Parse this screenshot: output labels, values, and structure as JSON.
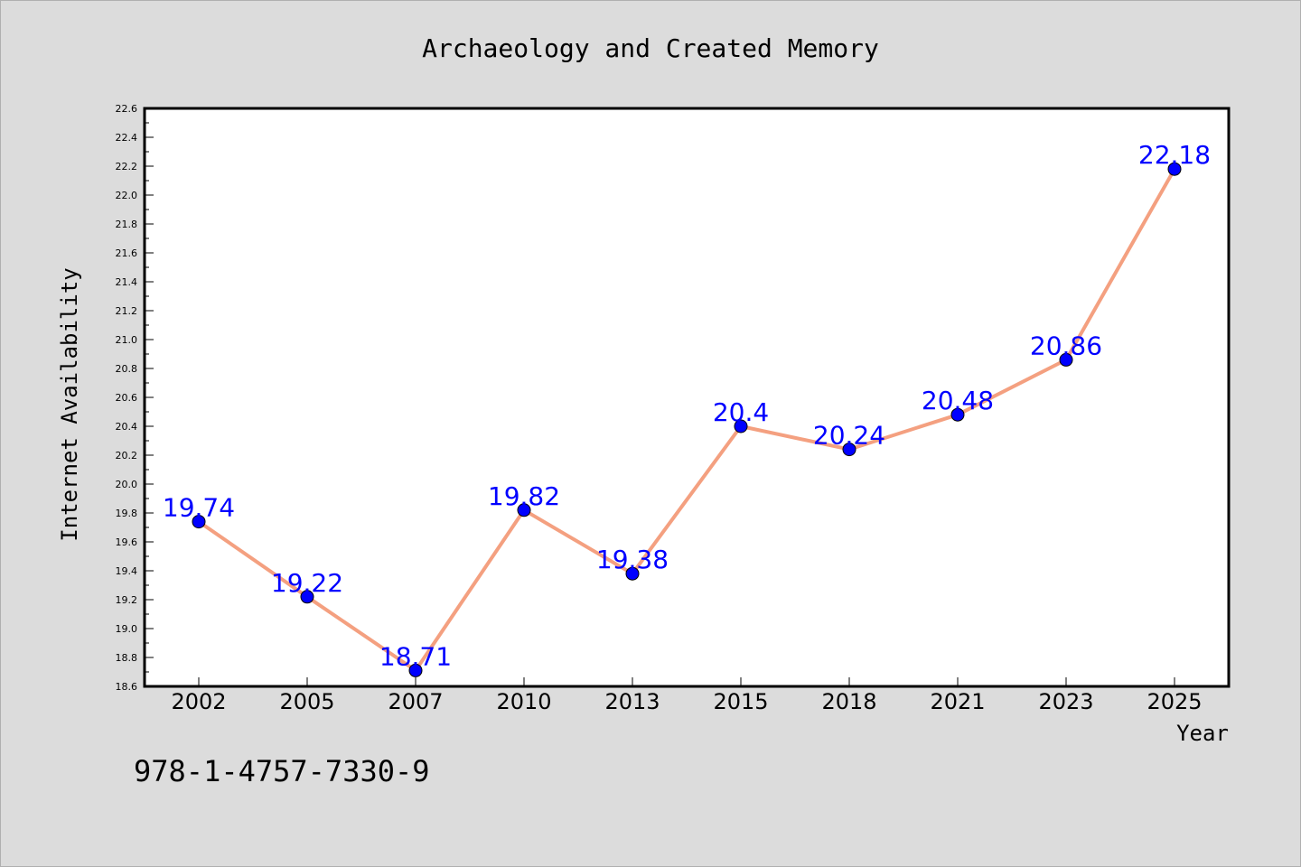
{
  "footer_code": "978-1-4757-7330-9",
  "colors": {
    "background": "#dcdcdc",
    "plot_background": "#ffffff",
    "line": "#f4a080",
    "marker": "#0000ff",
    "data_label": "#0000ff"
  },
  "chart_data": {
    "type": "line",
    "title": "Archaeology and Created Memory",
    "xlabel": "Year",
    "ylabel": "Internet Availability",
    "categories": [
      "2002",
      "2005",
      "2007",
      "2010",
      "2013",
      "2015",
      "2018",
      "2021",
      "2023",
      "2025"
    ],
    "series": [
      {
        "values": [
          19.74,
          19.22,
          18.71,
          19.82,
          19.38,
          20.4,
          20.24,
          20.48,
          20.86,
          22.18
        ],
        "data_labels": [
          "19.74",
          "19.22",
          "18.71",
          "19.82",
          "19.38",
          "20.4",
          "20.24",
          "20.48",
          "20.86",
          "22.18"
        ]
      }
    ],
    "ylim": [
      18.6,
      22.6
    ],
    "yticks": [
      "18.6",
      "18.8",
      "19.0",
      "19.2",
      "19.4",
      "19.6",
      "19.8",
      "20.0",
      "20.2",
      "20.4",
      "20.6",
      "20.8",
      "21.0",
      "21.2",
      "21.4",
      "21.6",
      "21.8",
      "22.0",
      "22.2",
      "22.4",
      "22.6"
    ],
    "grid": false,
    "legend": "none"
  }
}
